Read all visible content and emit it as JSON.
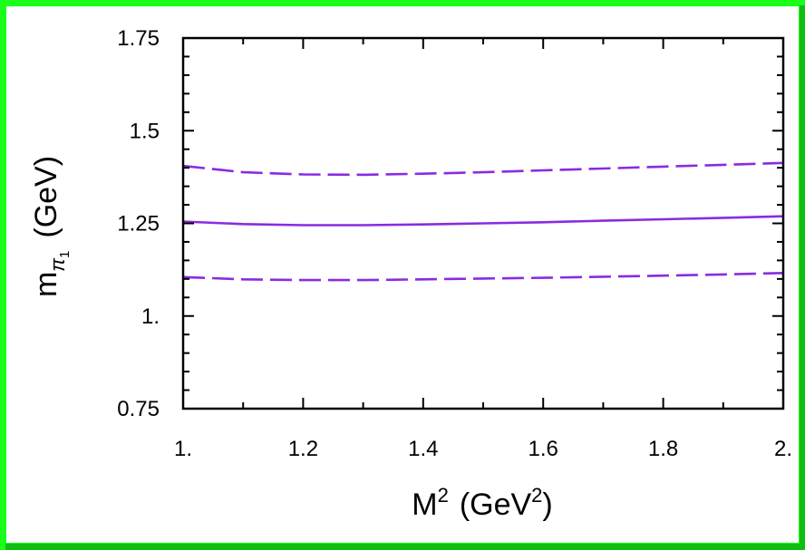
{
  "colors": {
    "frame_light": "#19ff19",
    "frame_dark": "#0fbf0f",
    "background": "#ffffff",
    "series": "#8a2be2",
    "axis": "#000000"
  },
  "chart_data": {
    "type": "line",
    "title": "",
    "xlabel": {
      "base": "M",
      "sup": "2",
      "unit_prefix": "(GeV",
      "unit_sup": "2",
      "unit_suffix": ")"
    },
    "ylabel": {
      "base": "m",
      "sub": "π",
      "subsub": "1",
      "unit": "(GeV)"
    },
    "xlim": [
      1.0,
      2.0
    ],
    "ylim": [
      0.75,
      1.75
    ],
    "x_ticks": [
      1.0,
      1.2,
      1.4,
      1.6,
      1.8,
      2.0
    ],
    "x_tick_labels": [
      "1.",
      "1.2",
      "1.4",
      "1.6",
      "1.8",
      "2."
    ],
    "y_ticks": [
      0.75,
      1.0,
      1.25,
      1.5,
      1.75
    ],
    "y_tick_labels": [
      "0.75",
      "1.",
      "1.25",
      "1.5",
      "1.75"
    ],
    "grid": false,
    "series": [
      {
        "style": "dashed",
        "x": [
          1.0,
          1.1,
          1.2,
          1.3,
          1.4,
          1.5,
          1.6,
          1.7,
          1.8,
          1.9,
          2.0
        ],
        "values": [
          1.405,
          1.388,
          1.382,
          1.381,
          1.384,
          1.388,
          1.393,
          1.398,
          1.403,
          1.408,
          1.413
        ]
      },
      {
        "style": "solid",
        "x": [
          1.0,
          1.1,
          1.2,
          1.3,
          1.4,
          1.5,
          1.6,
          1.7,
          1.8,
          1.9,
          2.0
        ],
        "values": [
          1.255,
          1.248,
          1.245,
          1.245,
          1.247,
          1.25,
          1.253,
          1.257,
          1.261,
          1.265,
          1.269
        ]
      },
      {
        "style": "dashed",
        "x": [
          1.0,
          1.1,
          1.2,
          1.3,
          1.4,
          1.5,
          1.6,
          1.7,
          1.8,
          1.9,
          2.0
        ],
        "values": [
          1.105,
          1.099,
          1.097,
          1.097,
          1.099,
          1.101,
          1.103,
          1.106,
          1.109,
          1.112,
          1.116
        ]
      }
    ]
  }
}
